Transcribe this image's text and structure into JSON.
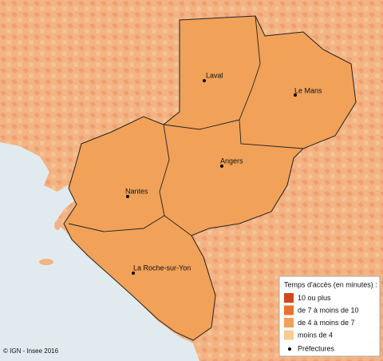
{
  "map": {
    "cities": [
      "Laval",
      "Le Mans",
      "Angers",
      "Nantes",
      "La Roche-sur-Yon"
    ],
    "legend": {
      "title": "Temps d'accès (en minutes) :",
      "items": [
        {
          "label": "10 ou plus",
          "color": "#d4461c"
        },
        {
          "label": "de 7 à moins de 10",
          "color": "#e8722e"
        },
        {
          "label": "de 4 à moins de 7",
          "color": "#f2a158"
        },
        {
          "label": "moins de 4",
          "color": "#f8cc8c"
        }
      ],
      "prefectures": "Préfectures"
    },
    "credit": "© IGN - Insee 2016"
  }
}
